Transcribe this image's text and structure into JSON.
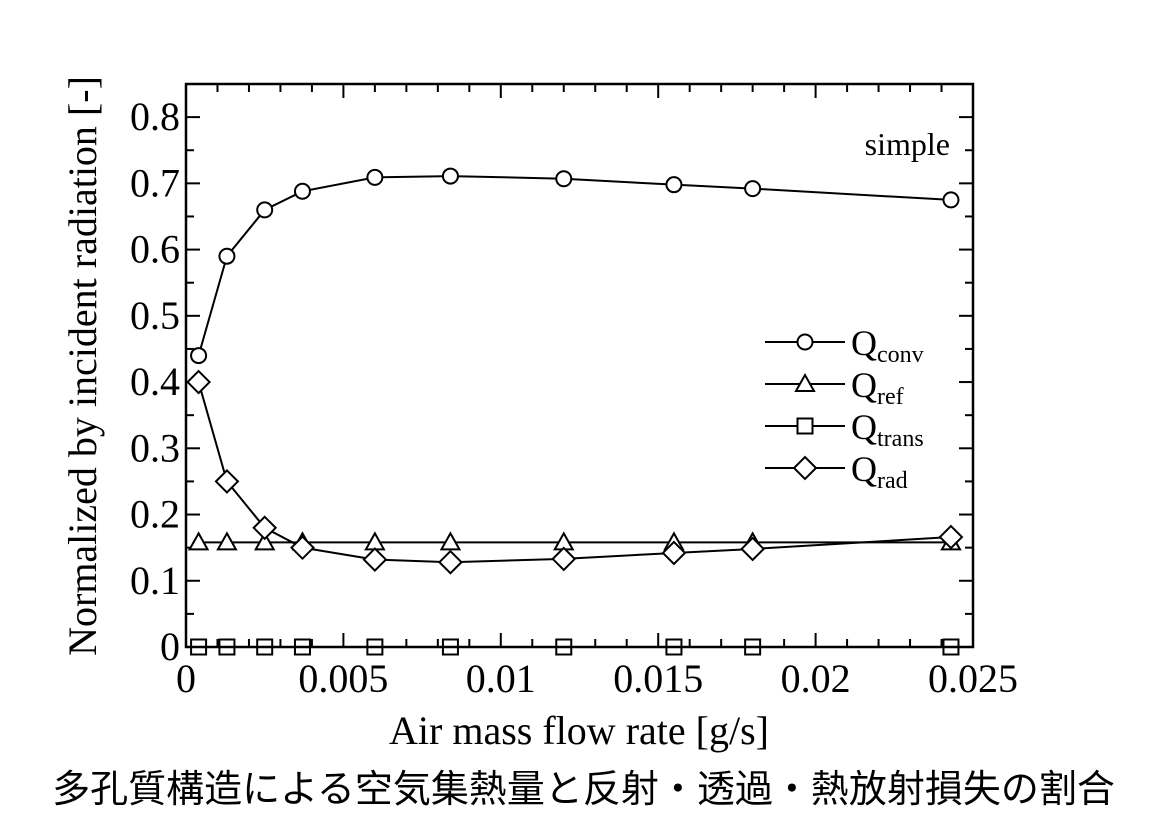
{
  "caption": "多孔質構造による空気集熱量と反射・透過・熱放射損失の割合",
  "chart_data": {
    "type": "line",
    "title": "",
    "annotation": "simple",
    "xlabel": "Air mass flow rate [g/s]",
    "ylabel": "Normalized by incident radiation [-]",
    "xlim": [
      0,
      0.025
    ],
    "ylim": [
      0,
      0.85
    ],
    "xticks": [
      0,
      0.005,
      0.01,
      0.015,
      0.02,
      0.025
    ],
    "xtick_labels": [
      "0",
      "0.005",
      "0.01",
      "0.015",
      "0.02",
      "0.025"
    ],
    "yticks": [
      0,
      0.1,
      0.2,
      0.3,
      0.4,
      0.5,
      0.6,
      0.7,
      0.8
    ],
    "ytick_labels": [
      "0",
      "0.1",
      "0.2",
      "0.3",
      "0.4",
      "0.5",
      "0.6",
      "0.7",
      "0.8"
    ],
    "grid": false,
    "legend_position": "center-right",
    "series": [
      {
        "name": "Qconv",
        "name_main": "Q",
        "name_sub": "conv",
        "marker": "circle",
        "x": [
          0.0004,
          0.0013,
          0.0025,
          0.0037,
          0.006,
          0.0084,
          0.012,
          0.0155,
          0.018,
          0.0243
        ],
        "y": [
          0.44,
          0.59,
          0.66,
          0.688,
          0.709,
          0.711,
          0.707,
          0.698,
          0.692,
          0.675
        ]
      },
      {
        "name": "Qref",
        "name_main": "Q",
        "name_sub": "ref",
        "marker": "triangle",
        "x": [
          0.0004,
          0.0013,
          0.0025,
          0.0037,
          0.006,
          0.0084,
          0.012,
          0.0155,
          0.018,
          0.0243
        ],
        "y": [
          0.158,
          0.158,
          0.158,
          0.158,
          0.158,
          0.158,
          0.158,
          0.158,
          0.158,
          0.158
        ]
      },
      {
        "name": "Qtrans",
        "name_main": "Q",
        "name_sub": "trans",
        "marker": "square",
        "x": [
          0.0004,
          0.0013,
          0.0025,
          0.0037,
          0.006,
          0.0084,
          0.012,
          0.0155,
          0.018,
          0.0243
        ],
        "y": [
          0,
          0,
          0,
          0,
          0,
          0,
          0,
          0,
          0,
          0
        ]
      },
      {
        "name": "Qrad",
        "name_main": "Q",
        "name_sub": "rad",
        "marker": "diamond",
        "x": [
          0.0004,
          0.0013,
          0.0025,
          0.0037,
          0.006,
          0.0084,
          0.012,
          0.0155,
          0.018,
          0.0243
        ],
        "y": [
          0.4,
          0.25,
          0.18,
          0.15,
          0.132,
          0.128,
          0.133,
          0.142,
          0.148,
          0.166
        ]
      }
    ]
  }
}
